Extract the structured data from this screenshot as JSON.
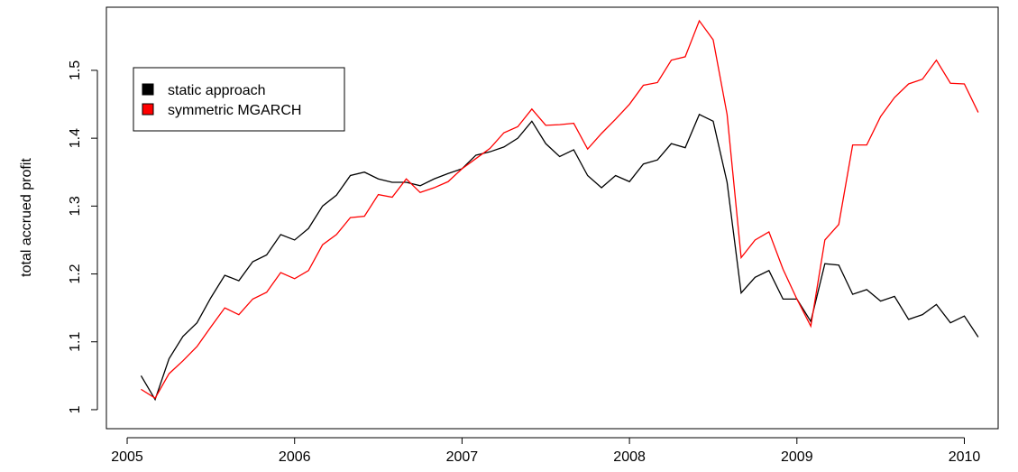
{
  "chart_data": {
    "type": "line",
    "ylabel": "total accrued profit",
    "x": [
      2005.083,
      2005.167,
      2005.25,
      2005.333,
      2005.417,
      2005.5,
      2005.583,
      2005.667,
      2005.75,
      2005.833,
      2005.917,
      2006,
      2006.083,
      2006.167,
      2006.25,
      2006.333,
      2006.417,
      2006.5,
      2006.583,
      2006.667,
      2006.75,
      2006.833,
      2006.917,
      2007,
      2007.083,
      2007.167,
      2007.25,
      2007.333,
      2007.417,
      2007.5,
      2007.583,
      2007.667,
      2007.75,
      2007.833,
      2007.917,
      2008,
      2008.083,
      2008.167,
      2008.25,
      2008.333,
      2008.417,
      2008.5,
      2008.583,
      2008.667,
      2008.75,
      2008.833,
      2008.917,
      2009,
      2009.083,
      2009.167,
      2009.25,
      2009.333,
      2009.417,
      2009.5,
      2009.583,
      2009.667,
      2009.75,
      2009.833,
      2009.917,
      2010,
      2010.083
    ],
    "series": [
      {
        "name": "static approach",
        "color": "#000000",
        "values": [
          1.05,
          1.015,
          1.075,
          1.108,
          1.128,
          1.165,
          1.198,
          1.19,
          1.218,
          1.228,
          1.258,
          1.25,
          1.267,
          1.3,
          1.316,
          1.345,
          1.35,
          1.34,
          1.335,
          1.335,
          1.33,
          1.34,
          1.348,
          1.355,
          1.375,
          1.38,
          1.387,
          1.4,
          1.425,
          1.392,
          1.373,
          1.383,
          1.345,
          1.327,
          1.345,
          1.336,
          1.362,
          1.368,
          1.392,
          1.386,
          1.435,
          1.425,
          1.335,
          1.172,
          1.195,
          1.205,
          1.163,
          1.163,
          1.13,
          1.215,
          1.213,
          1.17,
          1.177,
          1.16,
          1.167,
          1.133,
          1.14,
          1.155,
          1.128,
          1.138,
          1.107
        ]
      },
      {
        "name": "symmetric MGARCH",
        "color": "#ff0000",
        "values": [
          1.03,
          1.017,
          1.053,
          1.072,
          1.093,
          1.122,
          1.15,
          1.14,
          1.163,
          1.173,
          1.202,
          1.193,
          1.205,
          1.243,
          1.258,
          1.283,
          1.285,
          1.317,
          1.313,
          1.34,
          1.32,
          1.327,
          1.336,
          1.355,
          1.37,
          1.385,
          1.408,
          1.417,
          1.443,
          1.419,
          1.42,
          1.422,
          1.384,
          1.407,
          1.428,
          1.45,
          1.478,
          1.482,
          1.515,
          1.52,
          1.573,
          1.545,
          1.435,
          1.224,
          1.25,
          1.262,
          1.207,
          1.163,
          1.123,
          1.25,
          1.273,
          1.39,
          1.39,
          1.432,
          1.46,
          1.48,
          1.487,
          1.515,
          1.481,
          1.48,
          1.438
        ]
      }
    ],
    "xlim": [
      2004.876,
      2010.202
    ],
    "xticks": [
      2005,
      2006,
      2007,
      2008,
      2009,
      2010
    ],
    "ylim": [
      0.972,
      1.593
    ],
    "yticks": [
      1.0,
      1.1,
      1.2,
      1.3,
      1.4,
      1.5
    ],
    "legend": "top-left"
  }
}
